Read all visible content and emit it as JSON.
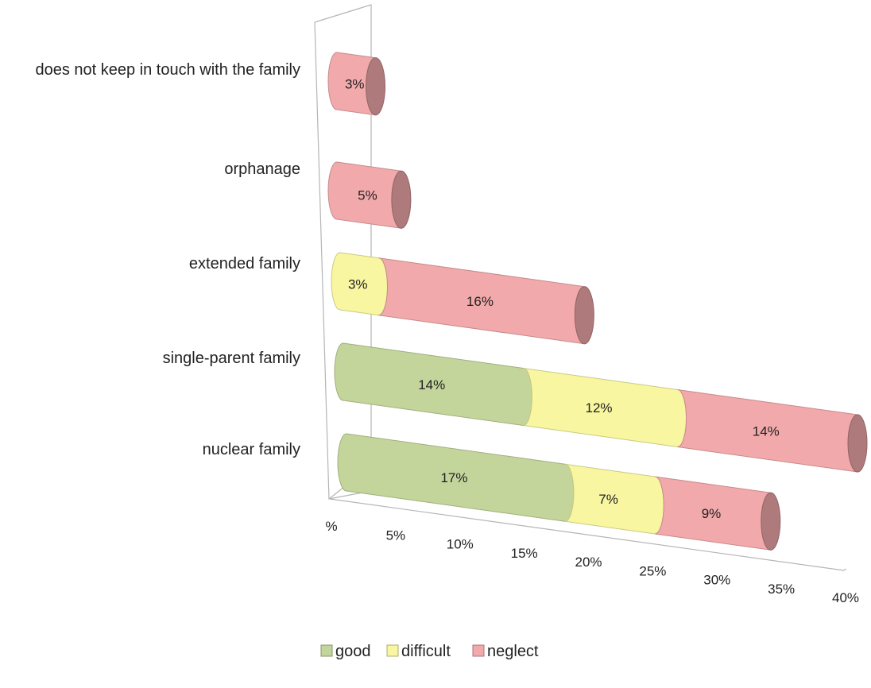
{
  "chart_data": {
    "type": "bar",
    "orientation": "horizontal",
    "stacked": true,
    "style": "3d-cylinder",
    "title": "",
    "xlabel": "",
    "ylabel": "",
    "categories": [
      "does not keep in touch with the family",
      "orphanage",
      "extended family",
      "single-parent family",
      "nuclear family"
    ],
    "series": [
      {
        "name": "good",
        "color": "#c4d59b",
        "values": [
          0,
          0,
          0,
          14,
          17
        ],
        "labels": [
          "",
          "",
          "",
          "14%",
          "17%"
        ]
      },
      {
        "name": "difficult",
        "color": "#f8f6a0",
        "values": [
          0,
          0,
          3,
          12,
          7
        ],
        "labels": [
          "",
          "",
          "3%",
          "12%",
          "7%"
        ]
      },
      {
        "name": "neglect",
        "color": "#f2a9ab",
        "values": [
          3,
          5,
          16,
          14,
          9
        ],
        "labels": [
          "3%",
          "5%",
          "16%",
          "14%",
          "9%"
        ]
      }
    ],
    "xlim": [
      0,
      40
    ],
    "x_ticks": [
      "%",
      "5%",
      "10%",
      "15%",
      "20%",
      "25%",
      "30%",
      "35%",
      "40%"
    ],
    "legend_position": "bottom",
    "grid": false
  }
}
